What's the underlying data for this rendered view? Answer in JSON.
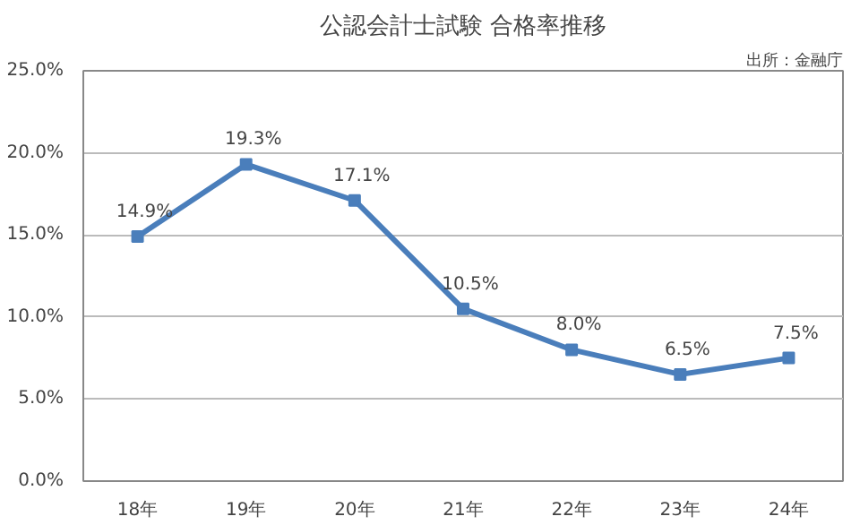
{
  "chart_data": {
    "type": "line",
    "title": "公認会計士試験 合格率推移",
    "annotations": [
      "出所：金融庁"
    ],
    "categories": [
      "18年",
      "19年",
      "20年",
      "21年",
      "22年",
      "23年",
      "24年"
    ],
    "series": [
      {
        "color": "#4a7ebb",
        "values": [
          14.9,
          19.3,
          17.1,
          10.5,
          8.0,
          6.5,
          7.5
        ],
        "value_labels": [
          "14.9%",
          "19.3%",
          "17.1%",
          "10.5%",
          "8.0%",
          "6.5%",
          "7.5%"
        ]
      }
    ],
    "ylim": [
      0,
      25
    ],
    "yticks": [
      {
        "value": 0,
        "label": "0.0%"
      },
      {
        "value": 5,
        "label": "5.0%"
      },
      {
        "value": 10,
        "label": "10.0%"
      },
      {
        "value": 15,
        "label": "15.0%"
      },
      {
        "value": 20,
        "label": "20.0%"
      },
      {
        "value": 25,
        "label": "25.0%"
      }
    ],
    "grid": "y",
    "marker": "square",
    "line_style": "solid"
  }
}
